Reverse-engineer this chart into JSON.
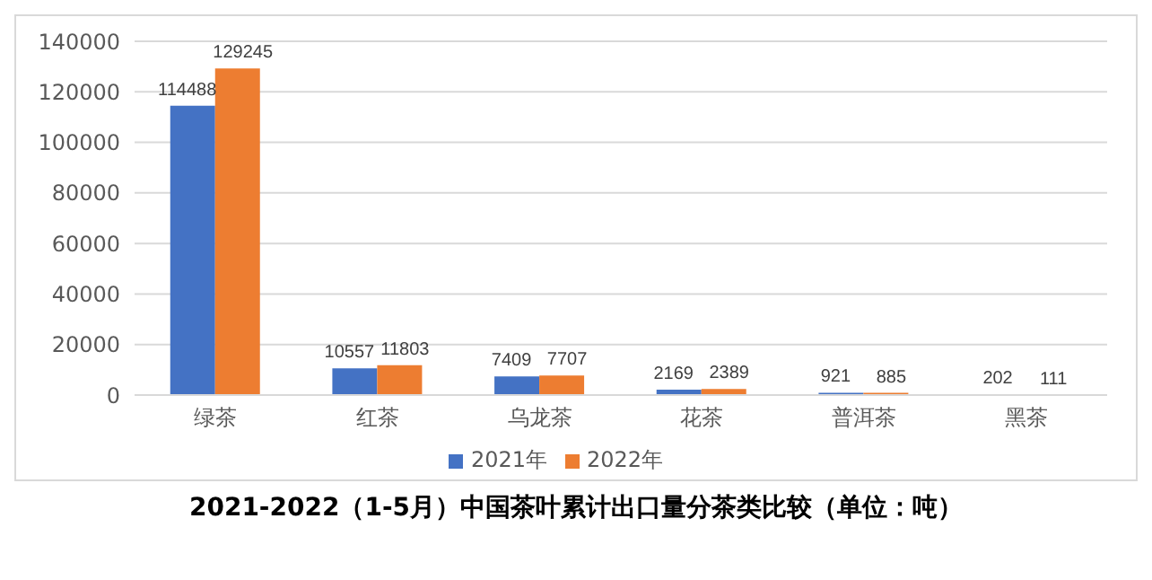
{
  "chart_data": {
    "type": "bar",
    "title": "2021-2022（1-5月）中国茶叶累计出口量分茶类比较（单位：吨）",
    "categories": [
      "绿茶",
      "红茶",
      "乌龙茶",
      "花茶",
      "普洱茶",
      "黑茶"
    ],
    "series": [
      {
        "name": "2021年",
        "color": "#4472c4",
        "values": [
          114488,
          10557,
          7409,
          2169,
          921,
          202
        ]
      },
      {
        "name": "2022年",
        "color": "#ed7d31",
        "values": [
          129245,
          11803,
          7707,
          2389,
          885,
          111
        ]
      }
    ],
    "ylim": [
      0,
      140000
    ],
    "yticks": [
      0,
      20000,
      40000,
      60000,
      80000,
      100000,
      120000,
      140000
    ],
    "grid": "y",
    "legend": "bottom",
    "data_labels": true
  }
}
